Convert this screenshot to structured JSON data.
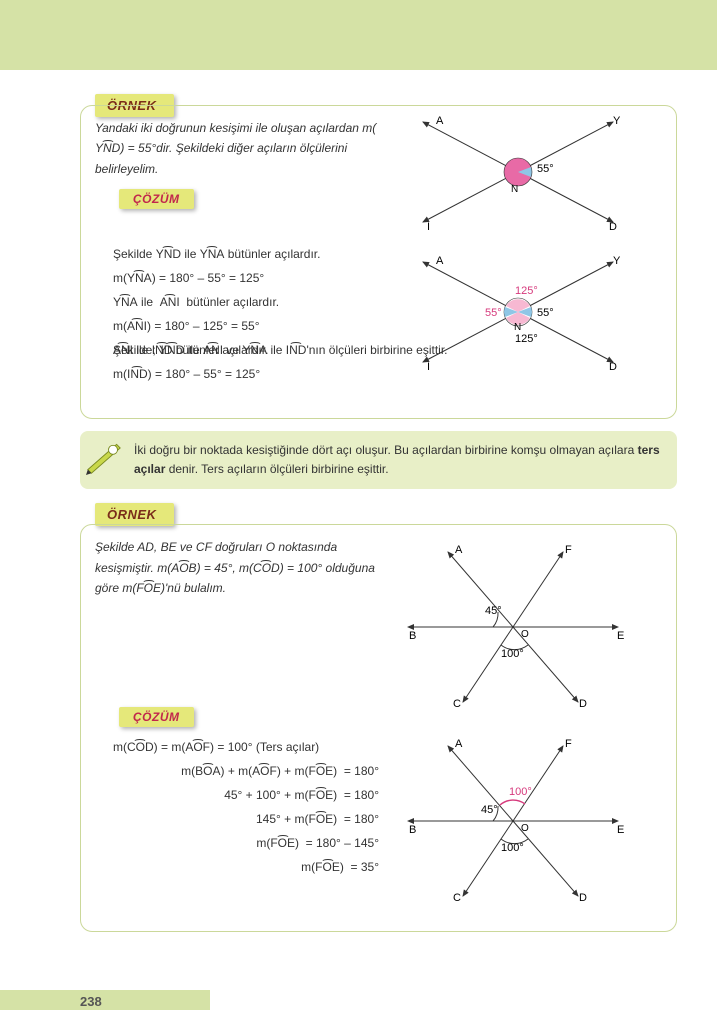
{
  "page_number": "238",
  "labels": {
    "ornek": "ÖRNEK",
    "cozum": "ÇÖZÜM"
  },
  "ex1": {
    "intro": "Yandaki iki doğrunun kesişimi ile oluşan açılardan m(<span class='arc'>YND</span>) = 55°dir. Şekildeki diğer açıların ölçülerini belirleyelim.",
    "sol": [
      "Şekilde <span class='arc'>YND</span> ile <span class='arc'>YNA</span> bütünler açılardır.",
      "m(<span class='arc'>YNA</span>) = 180° – 55° = 125°",
      "<span class='arc'>YNA</span> ile &nbsp;<span class='arc'>ANI</span> &nbsp;bütünler açılardır.",
      "m(<span class='arc'>ANI</span>) = 180° – 125° = 55°",
      "<span class='arc'>ANI</span> ile <span class='arc'>IND</span> bütünler açılardır.",
      "m(<span class='arc'>IND</span>) = 180° – 55° = 125°",
      "Şekilde; <span class='arc'>YND</span> ile <span class='arc'>ANI</span> ve <span class='arc'>YNA</span> ile <span class='arc'>IND</span>'nın ölçüleri birbirine eşittir."
    ],
    "d1": {
      "A": "A",
      "Y": "Y",
      "I": "I",
      "D": "D",
      "N": "N",
      "ang": "55°"
    },
    "d2": {
      "a1": "125°",
      "a2": "55°",
      "a3": "125°",
      "a4": "55°"
    }
  },
  "note": "İki doğru bir noktada kesiştiğinde dört açı oluşur. Bu açılardan birbirine komşu olmayan açılara <b>ters açılar</b> denir. Ters açıların ölçüleri birbirine eşittir.",
  "ex2": {
    "intro": "Şekilde AD, BE ve CF doğruları O noktasında kesişmiştir. m(<span class='arc'>AOB</span>) = 45°, m(<span class='arc'>COD</span>) = 100° olduğuna göre m(<span class='arc'>FOE</span>)'nü bulalım.",
    "sol": [
      "m(<span class='arc'>COD</span>) = m(<span class='arc'>AOF</span>) = 100° (Ters açılar)",
      "m(<span class='arc'>BOA</span>) + m(<span class='arc'>AOF</span>) + m(<span class='arc'>FOE</span>) &nbsp;= 180°",
      "45° + 100° + m(<span class='arc'>FOE</span>) &nbsp;= 180°",
      "145° + m(<span class='arc'>FOE</span>) &nbsp;= 180°",
      "m(<span class='arc'>FOE</span>) &nbsp;= 180° – 145°",
      "m(<span class='arc'>FOE</span>) &nbsp;= 35°"
    ],
    "d": {
      "A": "A",
      "B": "B",
      "C": "C",
      "D": "D",
      "E": "E",
      "F": "F",
      "O": "O",
      "a45": "45°",
      "a100": "100°",
      "a100b": "100°"
    }
  },
  "colors": {
    "green_bg": "#d5e2a6",
    "tab": "#e5e87a",
    "box_border": "#cbd89a",
    "note_bg": "#e8efc7",
    "pink": "#e86aa6",
    "blue": "#8fc6e6"
  }
}
